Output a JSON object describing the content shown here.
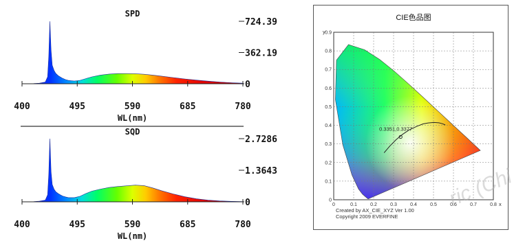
{
  "chart_data": [
    {
      "type": "area",
      "title": "SPD",
      "xlabel": "WL(nm)",
      "x_ticks": [
        "400",
        "495",
        "590",
        "685",
        "780"
      ],
      "y_ticks": [
        "724.39",
        "362.19",
        "0"
      ],
      "xlim": [
        400,
        780
      ],
      "ylim": [
        0,
        724.39
      ],
      "series": [
        {
          "x": [
            400,
            420,
            430,
            440,
            444,
            446,
            448,
            450,
            452,
            455,
            458,
            462,
            466,
            470,
            475,
            480,
            490,
            500,
            510,
            520,
            535,
            550,
            565,
            580,
            595,
            610,
            625,
            640,
            660,
            680,
            700,
            720,
            740,
            760,
            780
          ],
          "y": [
            0,
            2,
            6,
            20,
            80,
            320,
            724,
            390,
            215,
            155,
            120,
            95,
            78,
            62,
            48,
            38,
            32,
            40,
            60,
            80,
            100,
            112,
            118,
            118,
            116,
            110,
            100,
            88,
            72,
            56,
            42,
            30,
            20,
            12,
            6
          ]
        }
      ]
    },
    {
      "type": "area",
      "title": "SQD",
      "xlabel": "WL(nm)",
      "x_ticks": [
        "400",
        "495",
        "590",
        "685",
        "780"
      ],
      "y_ticks": [
        "2.7286",
        "1.3643",
        "0"
      ],
      "xlim": [
        400,
        780
      ],
      "ylim": [
        0,
        2.7286
      ],
      "series": [
        {
          "x": [
            400,
            420,
            430,
            440,
            444,
            446,
            448,
            450,
            452,
            455,
            458,
            462,
            466,
            470,
            475,
            480,
            490,
            500,
            510,
            520,
            535,
            550,
            565,
            580,
            595,
            610,
            625,
            640,
            660,
            680,
            700,
            720,
            740,
            760,
            780
          ],
          "y": [
            0,
            0.01,
            0.03,
            0.07,
            0.3,
            1.2,
            2.7286,
            1.3,
            0.75,
            0.55,
            0.44,
            0.36,
            0.3,
            0.25,
            0.21,
            0.18,
            0.18,
            0.24,
            0.36,
            0.46,
            0.55,
            0.62,
            0.66,
            0.69,
            0.72,
            0.7,
            0.6,
            0.48,
            0.34,
            0.22,
            0.13,
            0.07,
            0.04,
            0.02,
            0.01
          ]
        }
      ]
    },
    {
      "type": "scatter",
      "title": "CIE色品图",
      "xlabel": "x",
      "ylabel": "y",
      "x_ticks": [
        "0",
        "0.1",
        "0.2",
        "0.3",
        "0.4",
        "0.5",
        "0.6",
        "0.7",
        "0.8"
      ],
      "y_ticks": [
        "0",
        "0.1",
        "0.2",
        "0.3",
        "0.4",
        "0.5",
        "0.6",
        "0.7",
        "0.8",
        "0.9"
      ],
      "xlim": [
        0,
        0.8
      ],
      "ylim": [
        0,
        0.9
      ],
      "grid": true,
      "point": {
        "x": 0.3351,
        "y": 0.3377,
        "label": "0.3351,0.3377"
      },
      "locus_x": [
        0.1741,
        0.1738,
        0.1714,
        0.1644,
        0.144,
        0.1241,
        0.0913,
        0.0454,
        0.0082,
        0.0139,
        0.0743,
        0.1547,
        0.2296,
        0.3016,
        0.3731,
        0.4441,
        0.5125,
        0.5752,
        0.627,
        0.6658,
        0.6915,
        0.7079,
        0.714,
        0.7347
      ],
      "locus_y": [
        0.005,
        0.0049,
        0.0051,
        0.0109,
        0.0297,
        0.0578,
        0.1327,
        0.295,
        0.5384,
        0.7502,
        0.8338,
        0.8059,
        0.7543,
        0.6923,
        0.6245,
        0.5547,
        0.4866,
        0.4242,
        0.3725,
        0.334,
        0.3083,
        0.292,
        0.2859,
        0.2653
      ],
      "planck_x": [
        0.2525,
        0.281,
        0.3135,
        0.3451,
        0.3805,
        0.4195,
        0.4476,
        0.4735,
        0.5011,
        0.5267,
        0.5454,
        0.559
      ],
      "planck_y": [
        0.2523,
        0.2884,
        0.3236,
        0.3516,
        0.3768,
        0.3958,
        0.4074,
        0.4127,
        0.4152,
        0.4133,
        0.4082,
        0.402
      ],
      "footer_lines": [
        "Created by AX_CIE_XYZ Ver 1.00",
        "Copyright 2009 EVERFINE"
      ]
    }
  ],
  "watermark": "ric (Chi"
}
